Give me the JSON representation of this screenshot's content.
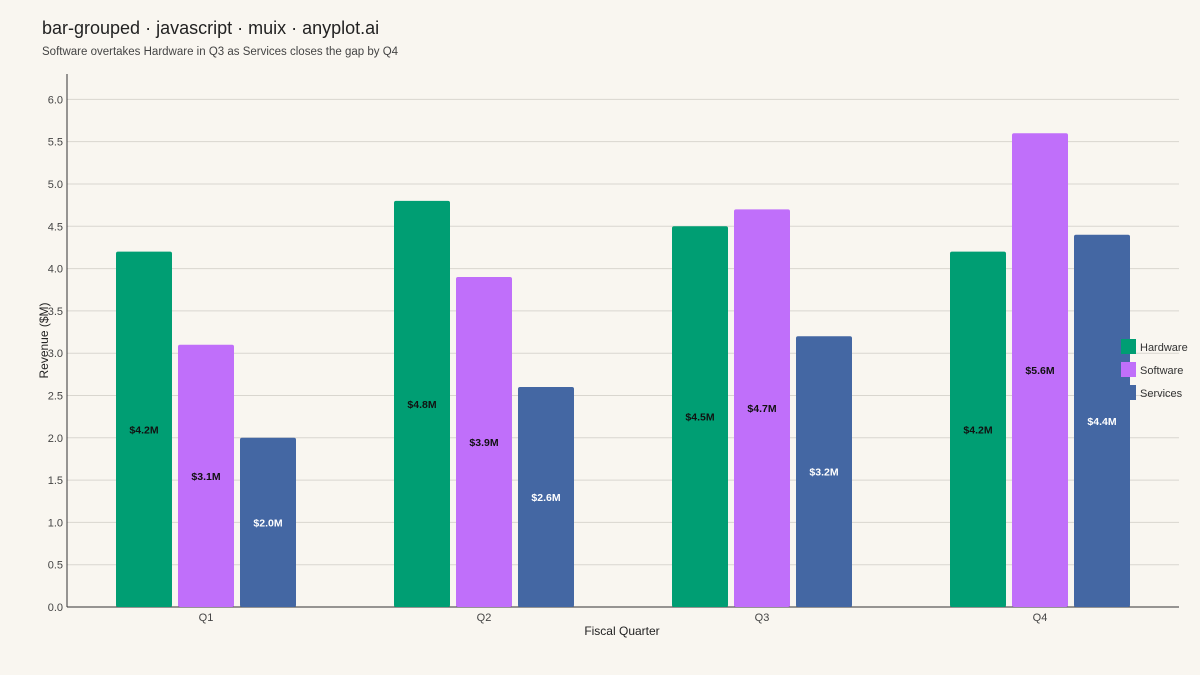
{
  "header": {
    "title": "bar-grouped · javascript · muix · anyplot.ai",
    "subtitle": "Software overtakes Hardware in Q3 as Services closes the gap by Q4"
  },
  "chart_data": {
    "type": "bar",
    "title": "bar-grouped · javascript · muix · anyplot.ai",
    "subtitle": "Software overtakes Hardware in Q3 as Services closes the gap by Q4",
    "xlabel": "Fiscal Quarter",
    "ylabel": "Revenue ($M)",
    "ylim": [
      0,
      6.3
    ],
    "yticks": [
      0.0,
      0.5,
      1.0,
      1.5,
      2.0,
      2.5,
      3.0,
      3.5,
      4.0,
      4.5,
      5.0,
      5.5,
      6.0
    ],
    "grid": "horizontal",
    "legend_position": "right",
    "categories": [
      "Q1",
      "Q2",
      "Q3",
      "Q4"
    ],
    "series": [
      {
        "name": "Hardware",
        "color": "#009e73",
        "label_color": "#111111",
        "values": [
          4.2,
          4.8,
          4.5,
          4.2
        ],
        "labels": [
          "$4.2M",
          "$4.8M",
          "$4.5M",
          "$4.2M"
        ]
      },
      {
        "name": "Software",
        "color": "#c06ffa",
        "label_color": "#111111",
        "values": [
          3.1,
          3.9,
          4.7,
          5.6
        ],
        "labels": [
          "$3.1M",
          "$3.9M",
          "$4.7M",
          "$5.6M"
        ]
      },
      {
        "name": "Services",
        "color": "#4467a3",
        "label_color": "#ffffff",
        "values": [
          2.0,
          2.6,
          3.2,
          4.4
        ],
        "labels": [
          "$2.0M",
          "$2.6M",
          "$3.2M",
          "$4.4M"
        ]
      }
    ]
  }
}
